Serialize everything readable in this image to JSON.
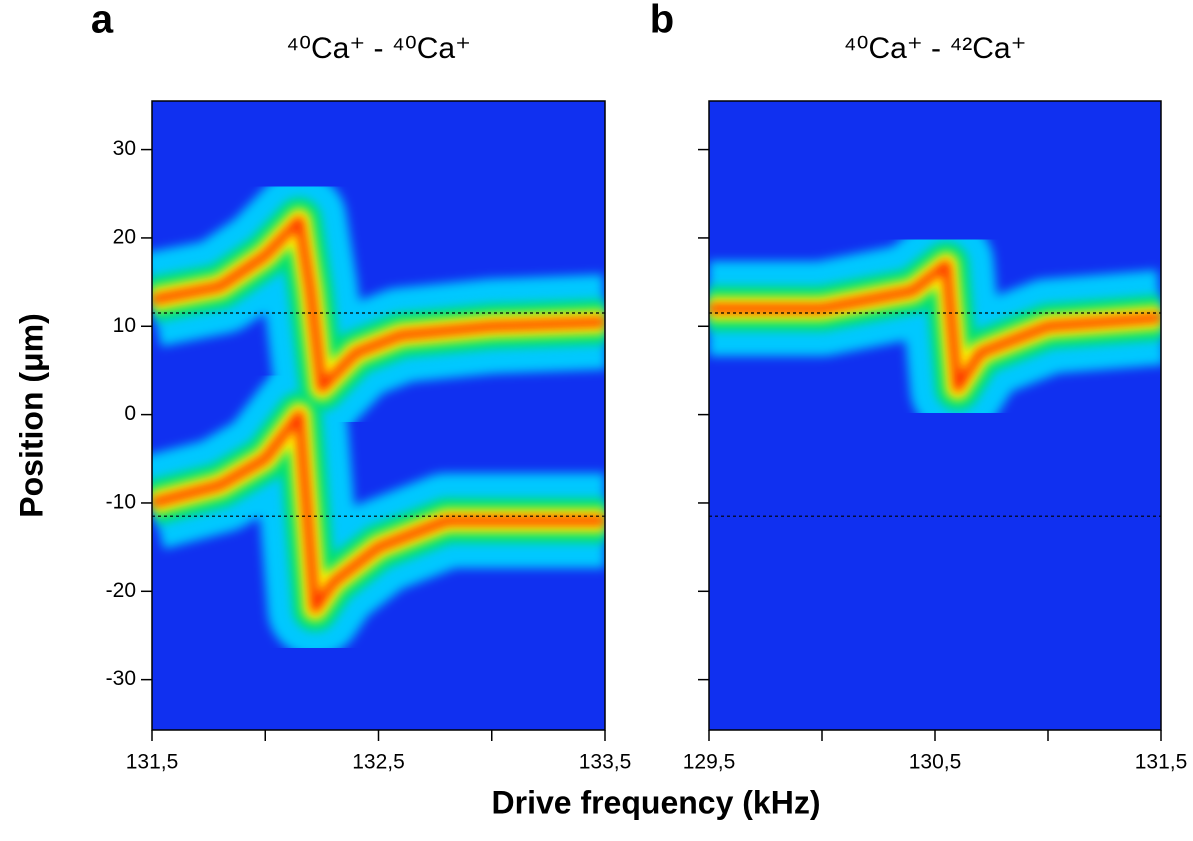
{
  "chart_data": [
    {
      "type": "heatmap-ridge",
      "panel_label": "a",
      "title": "⁴⁰Ca⁺ - ⁴⁰Ca⁺",
      "ylabel": "Position (μm)",
      "xlim": [
        131.5,
        133.5
      ],
      "ylim": [
        -35.7,
        35.5
      ],
      "xticks": [
        {
          "value": 131.5,
          "label": "131,5"
        },
        {
          "value": 132
        },
        {
          "value": 132.5,
          "label": "132,5"
        },
        {
          "value": 133
        },
        {
          "value": 133.5,
          "label": "133,5"
        }
      ],
      "yticks": [
        -30,
        -20,
        -10,
        0,
        10,
        20,
        30
      ],
      "show_ytick_labels": true,
      "reference_lines": [
        11.5,
        -11.5
      ],
      "background": "#1030f0",
      "band_colors": [
        "#00c8ff",
        "#00e070",
        "#ffff00",
        "#ff2a00"
      ],
      "ridges": [
        {
          "x": [
            131.5,
            131.8,
            132.0,
            132.15,
            132.2,
            132.25,
            132.4,
            132.6,
            133.0,
            133.5
          ],
          "values": [
            13,
            14.5,
            18,
            22,
            14,
            3,
            7,
            9,
            10,
            10.5
          ]
        },
        {
          "x": [
            131.5,
            131.8,
            132.0,
            132.15,
            132.22,
            132.3,
            132.5,
            132.8,
            133.5
          ],
          "values": [
            -10,
            -8,
            -5,
            0,
            -22,
            -19,
            -15,
            -12,
            -12
          ]
        }
      ]
    },
    {
      "type": "heatmap-ridge",
      "panel_label": "b",
      "title": "⁴⁰Ca⁺ - ⁴²Ca⁺",
      "xlim": [
        129.5,
        131.5
      ],
      "ylim": [
        -35.7,
        35.5
      ],
      "xticks": [
        {
          "value": 129.5,
          "label": "129,5"
        },
        {
          "value": 130
        },
        {
          "value": 130.5,
          "label": "130,5"
        },
        {
          "value": 131
        },
        {
          "value": 131.5,
          "label": "131,5"
        }
      ],
      "yticks": [
        -30,
        -20,
        -10,
        0,
        10,
        20,
        30
      ],
      "show_ytick_labels": false,
      "reference_lines": [
        11.5,
        -11.5
      ],
      "background": "#1030f0",
      "band_colors": [
        "#00c8ff",
        "#00e070",
        "#ffff00",
        "#ff2a00"
      ],
      "ridges": [
        {
          "x": [
            129.5,
            130.0,
            130.4,
            130.55,
            130.6,
            130.7,
            131.0,
            131.5
          ],
          "values": [
            12,
            12,
            14,
            17,
            3,
            7,
            10,
            11
          ]
        }
      ]
    }
  ],
  "xlabel": "Drive frequency (kHz)"
}
